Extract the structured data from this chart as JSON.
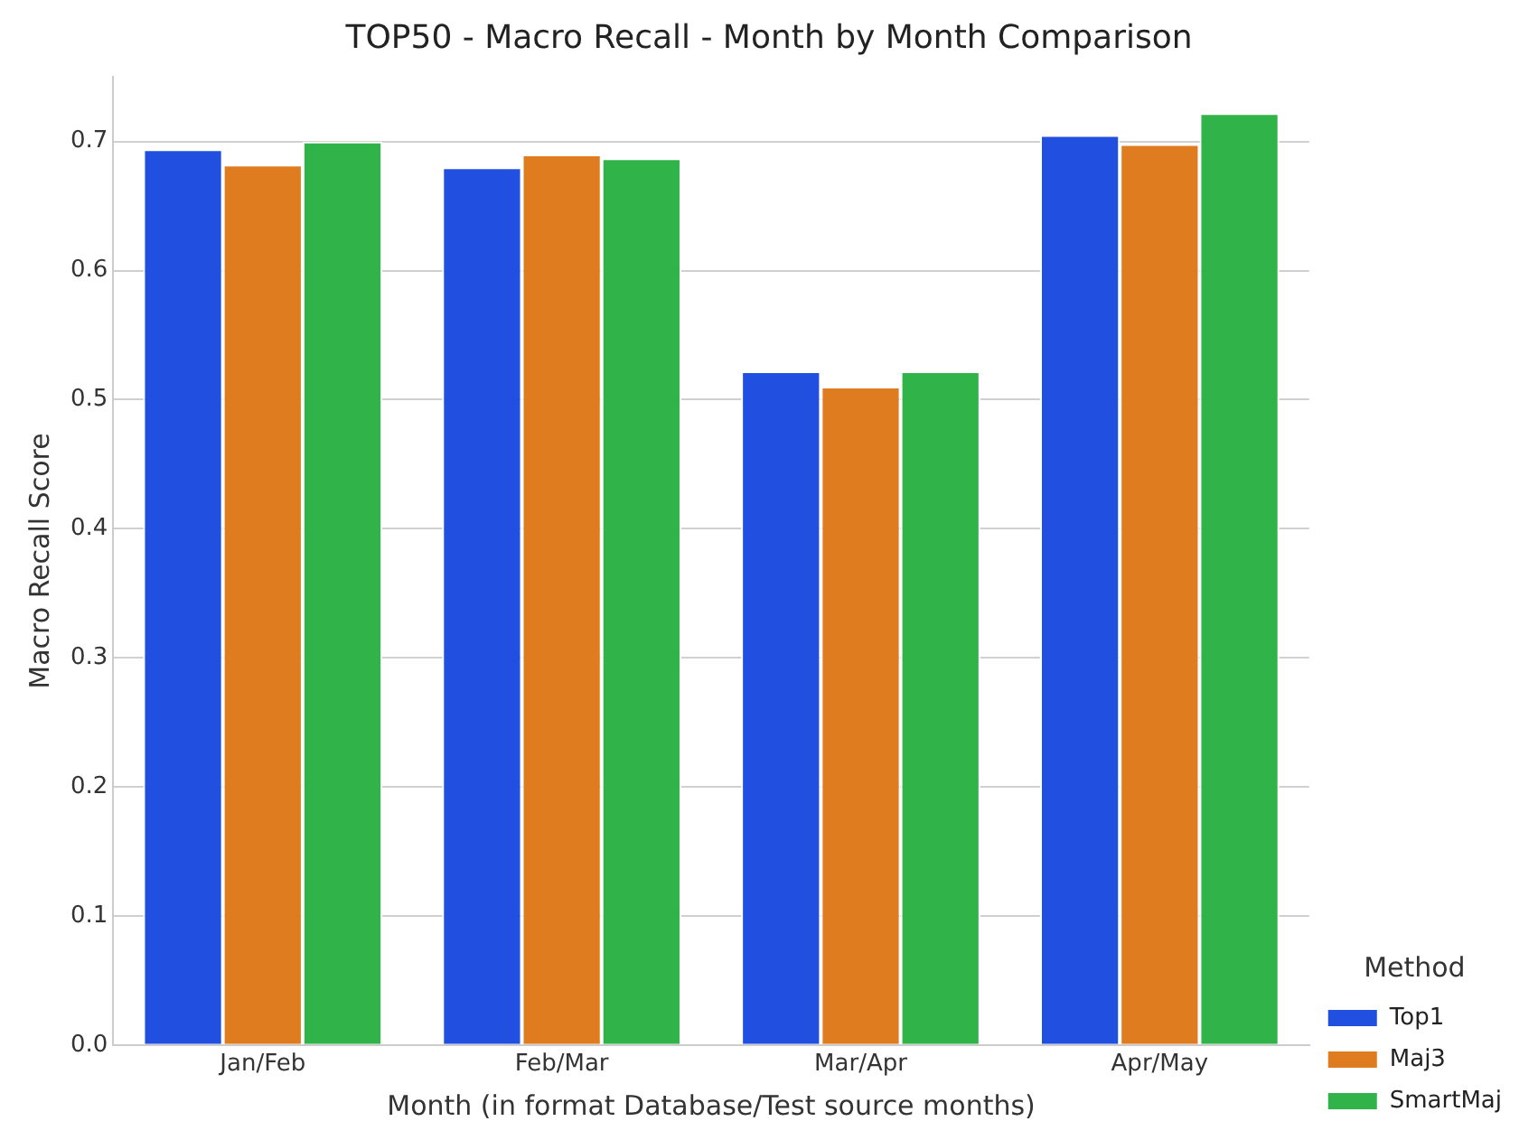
{
  "chart_data": {
    "type": "bar",
    "title": "TOP50 - Macro Recall - Month by Month Comparison",
    "xlabel": "Month (in format Database/Test source months)",
    "ylabel": "Macro Recall Score",
    "legend_title": "Method",
    "categories": [
      "Jan/Feb",
      "Feb/Mar",
      "Mar/Apr",
      "Apr/May"
    ],
    "series": [
      {
        "name": "Top1",
        "color": "#2150e0",
        "values": [
          0.694,
          0.68,
          0.522,
          0.705
        ]
      },
      {
        "name": "Maj3",
        "color": "#e07c20",
        "values": [
          0.682,
          0.69,
          0.51,
          0.698
        ]
      },
      {
        "name": "SmartMaj",
        "color": "#30b348",
        "values": [
          0.7,
          0.687,
          0.522,
          0.722
        ]
      }
    ],
    "ylim": [
      0,
      0.75
    ],
    "yticks": [
      {
        "value": 0,
        "label": "0.0"
      },
      0.1,
      0.2,
      0.3,
      0.4,
      0.5,
      0.6,
      0.7
    ],
    "grid": "y",
    "legend": "bottom right"
  }
}
